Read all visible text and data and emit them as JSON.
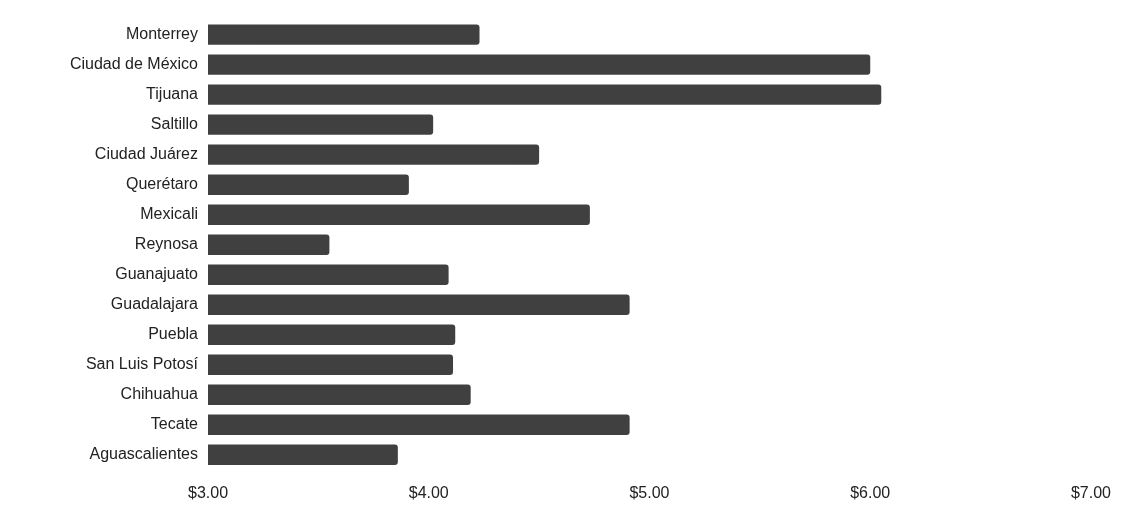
{
  "chart_data": {
    "type": "bar",
    "orientation": "horizontal",
    "categories": [
      "Monterrey",
      "Ciudad de México",
      "Tijuana",
      "Saltillo",
      "Ciudad Juárez",
      "Querétaro",
      "Mexicali",
      "Reynosa",
      "Guanajuato",
      "Guadalajara",
      "Puebla",
      "San Luis Potosí",
      "Chihuahua",
      "Tecate",
      "Aguascalientes"
    ],
    "values": [
      4.23,
      6.0,
      6.05,
      4.02,
      4.5,
      3.91,
      4.73,
      3.55,
      4.09,
      4.91,
      4.12,
      4.11,
      4.19,
      4.91,
      3.86
    ],
    "color": "#404040",
    "xlim": [
      3,
      7
    ],
    "xticks": [
      {
        "value": 3,
        "label": "$3.00"
      },
      {
        "value": 4,
        "label": "$4.00"
      },
      {
        "value": 5,
        "label": "$5.00"
      },
      {
        "value": 6,
        "label": "$6.00"
      },
      {
        "value": 7,
        "label": "$7.00"
      }
    ],
    "grid": false,
    "legend": false
  }
}
